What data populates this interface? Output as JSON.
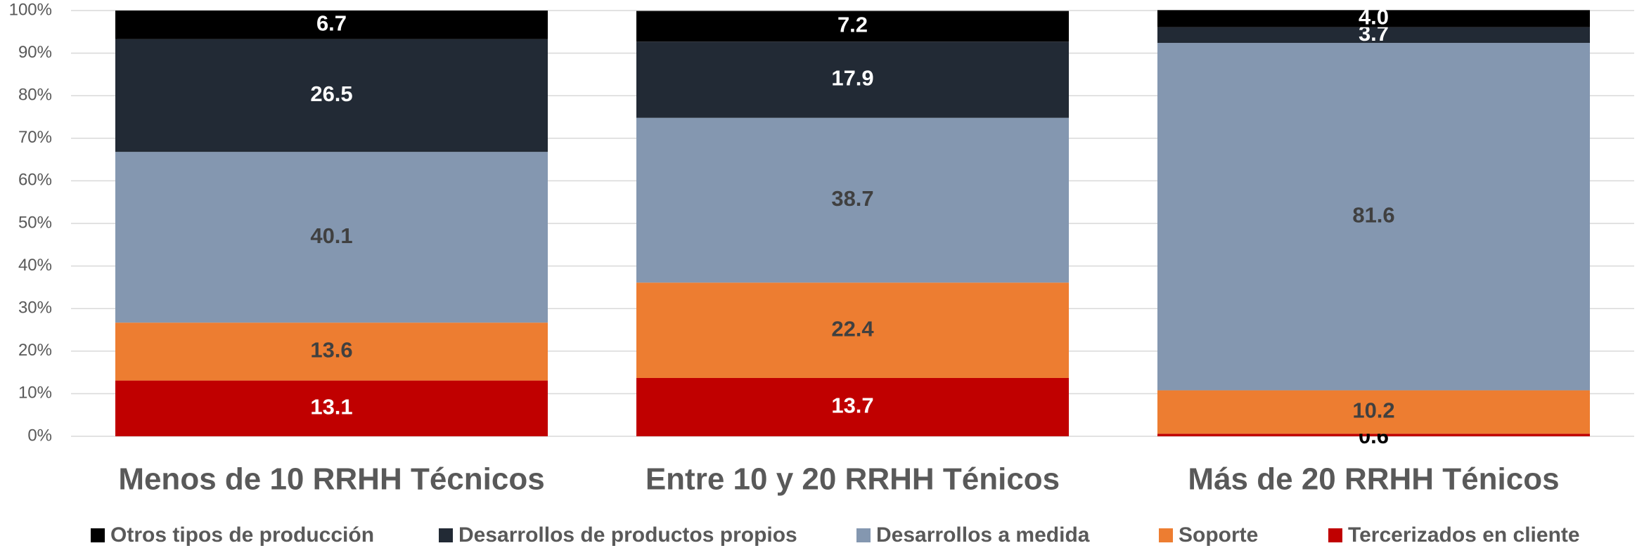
{
  "chart_data": {
    "type": "stacked_bar",
    "categories": [
      "Menos de 10 RRHH Técnicos",
      "Entre 10 y 20 RRHH Ténicos",
      "Más de 20 RRHH Ténicos"
    ],
    "series": [
      {
        "name": "Tercerizados en cliente",
        "color": "#c00000",
        "values": [
          13.1,
          13.7,
          0.6
        ],
        "value_labels": [
          "13.1",
          "13.7",
          "0.6"
        ]
      },
      {
        "name": "Soporte",
        "color": "#ed7d31",
        "values": [
          13.6,
          22.4,
          10.2
        ],
        "value_labels": [
          "13.6",
          "22.4",
          "10.2"
        ]
      },
      {
        "name": "Desarrollos a medida",
        "color": "#8497b0",
        "values": [
          40.1,
          38.7,
          81.6
        ],
        "value_labels": [
          "40.1",
          "38.7",
          "81.6"
        ]
      },
      {
        "name": "Desarrollos de productos propios",
        "color": "#222a35",
        "values": [
          26.5,
          17.9,
          3.7
        ],
        "value_labels": [
          "26.5",
          "17.9",
          "3.7"
        ]
      },
      {
        "name": "Otros tipos de producción",
        "color": "#000000",
        "values": [
          6.7,
          7.2,
          4.0
        ],
        "value_labels": [
          "6.7",
          "7.2",
          "4.0"
        ]
      }
    ],
    "ylim": [
      0,
      100
    ],
    "yticks": [
      {
        "value": 0,
        "label": "0%"
      },
      {
        "value": 10,
        "label": "10%"
      },
      {
        "value": 20,
        "label": "20%"
      },
      {
        "value": 30,
        "label": "30%"
      },
      {
        "value": 40,
        "label": "40%"
      },
      {
        "value": 50,
        "label": "50%"
      },
      {
        "value": 60,
        "label": "60%"
      },
      {
        "value": 70,
        "label": "70%"
      },
      {
        "value": 80,
        "label": "80%"
      },
      {
        "value": 90,
        "label": "90%"
      },
      {
        "value": 100,
        "label": "100%"
      }
    ],
    "grid": true
  }
}
